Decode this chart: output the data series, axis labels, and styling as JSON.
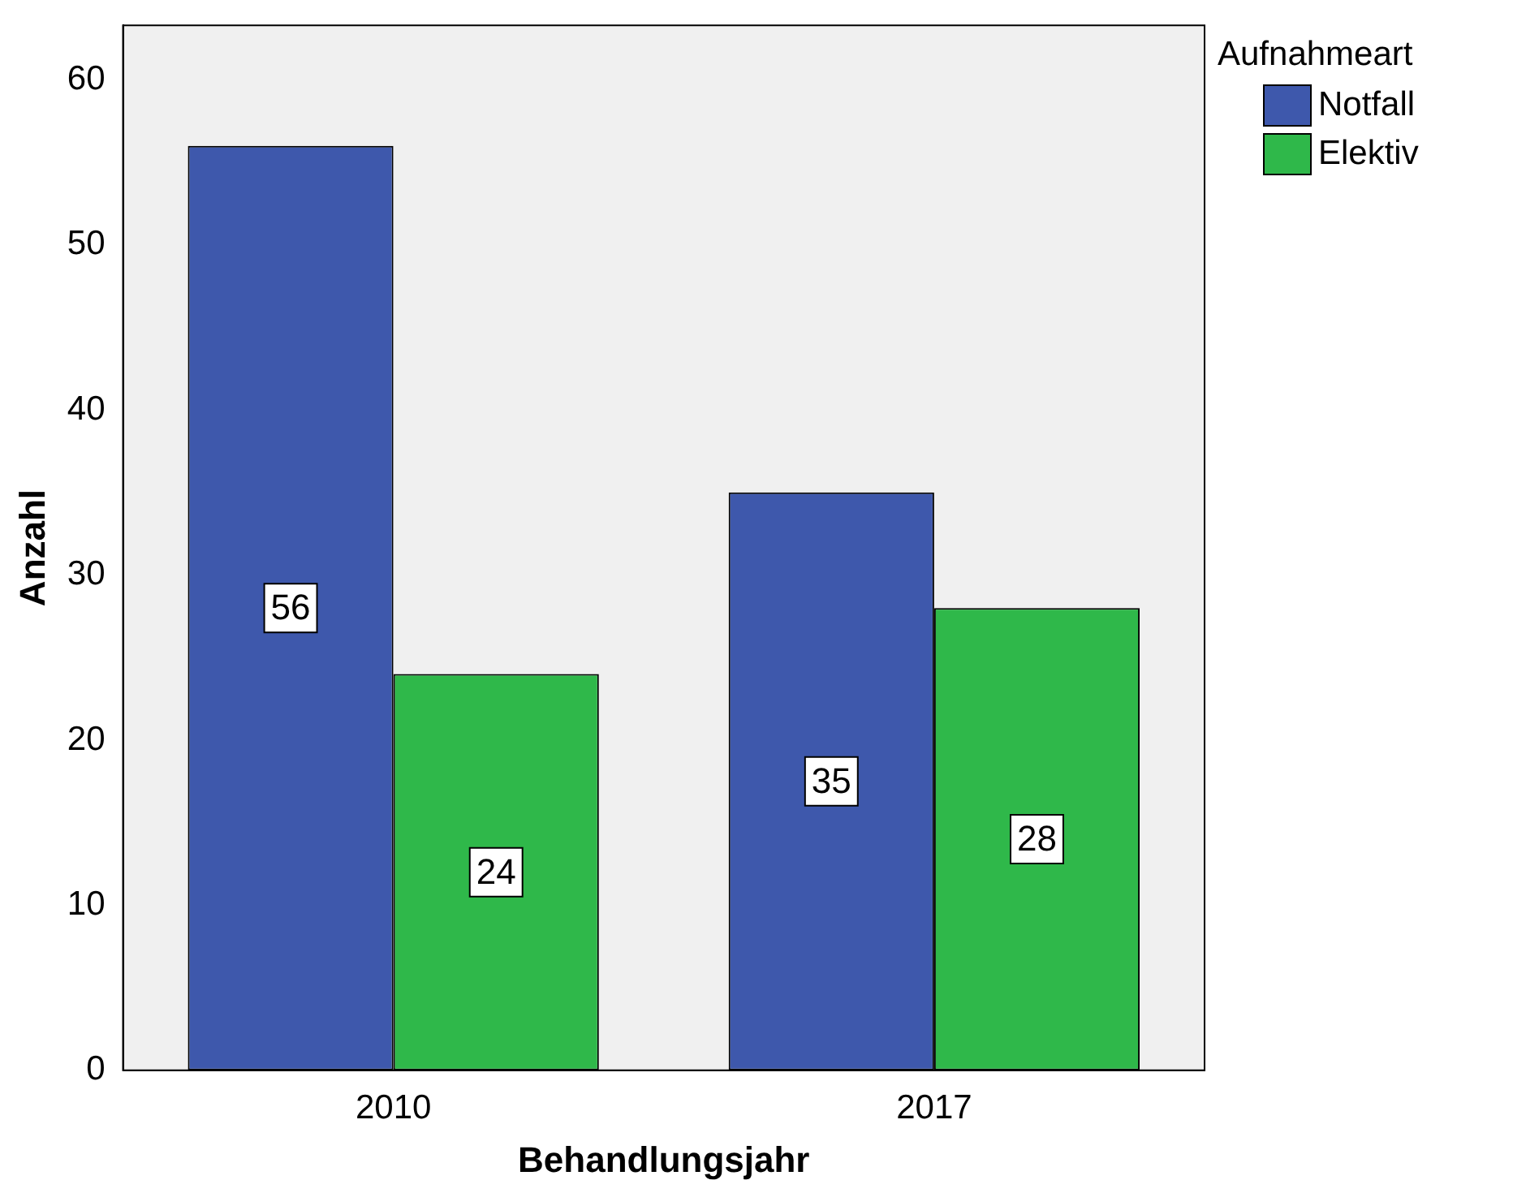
{
  "chart_data": {
    "type": "bar",
    "xlabel": "Behandlungsjahr",
    "ylabel": "Anzahl",
    "legend_title": "Aufnahmeart",
    "categories": [
      "2010",
      "2017"
    ],
    "series": [
      {
        "name": "Notfall",
        "color": "#3e58ac",
        "values": [
          56,
          35
        ]
      },
      {
        "name": "Elektiv",
        "color": "#2fb84a",
        "values": [
          24,
          28
        ]
      }
    ],
    "ylim": [
      0,
      63.3
    ],
    "yticks": [
      0,
      10,
      20,
      30,
      40,
      50,
      60
    ],
    "grid": false,
    "legend": "top right",
    "data_labels": true
  }
}
